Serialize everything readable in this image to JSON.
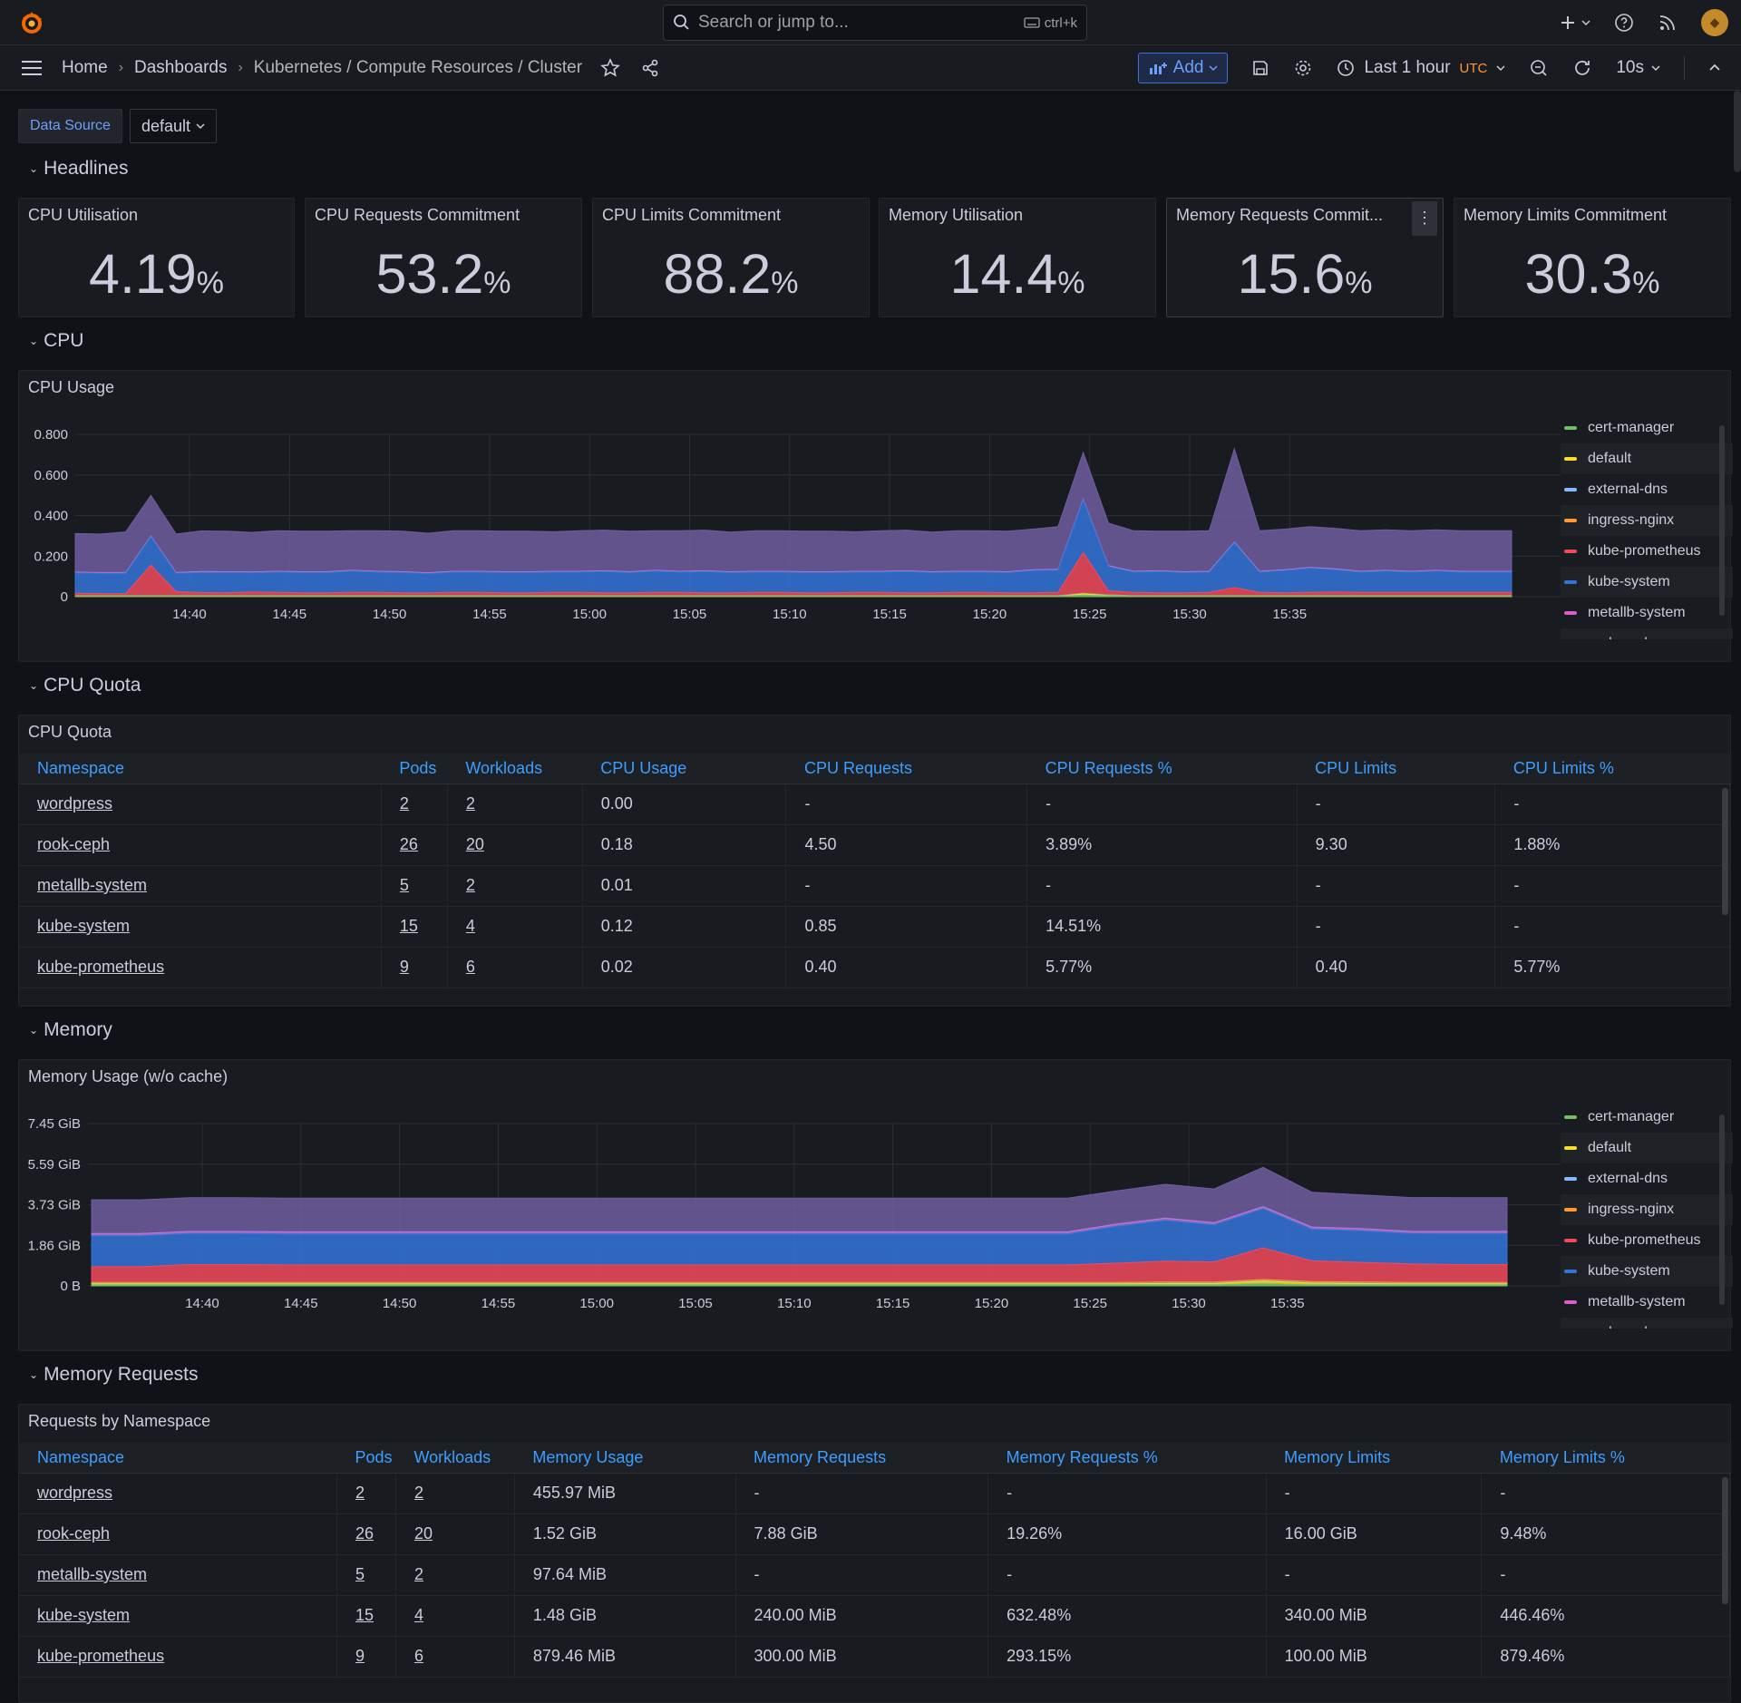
{
  "topbar": {
    "search_placeholder": "Search or jump to...",
    "search_shortcut": "ctrl+k",
    "icons": [
      "grafana-logo-icon",
      "plus-icon",
      "help-icon",
      "rss-icon",
      "avatar"
    ]
  },
  "nav": {
    "breadcrumbs": [
      "Home",
      "Dashboards",
      "Kubernetes / Compute Resources / Cluster"
    ],
    "add_label": "Add",
    "time_range": "Last 1 hour",
    "timezone": "UTC",
    "refresh": "10s"
  },
  "variables": {
    "label": "Data Source",
    "value": "default"
  },
  "rows": {
    "headlines": "Headlines",
    "cpu": "CPU",
    "cpu_quota": "CPU Quota",
    "memory": "Memory",
    "memory_requests": "Memory Requests"
  },
  "stats": [
    {
      "title": "CPU Utilisation",
      "value": "4.19",
      "unit": "%"
    },
    {
      "title": "CPU Requests Commitment",
      "value": "53.2",
      "unit": "%"
    },
    {
      "title": "CPU Limits Commitment",
      "value": "88.2",
      "unit": "%"
    },
    {
      "title": "Memory Utilisation",
      "value": "14.4",
      "unit": "%"
    },
    {
      "title": "Memory Requests Commit...",
      "value": "15.6",
      "unit": "%"
    },
    {
      "title": "Memory Limits Commitment",
      "value": "30.3",
      "unit": "%"
    }
  ],
  "legend": [
    "cert-manager",
    "default",
    "external-dns",
    "ingress-nginx",
    "kube-prometheus",
    "kube-system",
    "metallb-system",
    "rook-ceph"
  ],
  "colors": {
    "cert-manager": "#73bf69",
    "default": "#fade2a",
    "external-dns": "#5794f2",
    "ingress-nginx": "#ff9830",
    "kube-prometheus": "#f2495c",
    "kube-system": "#3274d9",
    "metallb-system": "#b877d9",
    "rook-ceph": "#705da0",
    "legend-external-dns": "#8ab8ff",
    "legend-kube-system": "#3274d9",
    "legend-metallb": "#e05cc7"
  },
  "chart_data": [
    {
      "type": "area",
      "title": "CPU Usage",
      "stacked": true,
      "x": [
        "14:38",
        "14:39",
        "14:40",
        "14:41",
        "14:42",
        "14:43",
        "14:44",
        "14:45",
        "14:46",
        "14:47",
        "14:48",
        "14:49",
        "14:50",
        "14:51",
        "14:52",
        "14:53",
        "14:54",
        "14:55",
        "14:56",
        "14:57",
        "14:58",
        "14:59",
        "15:00",
        "15:01",
        "15:02",
        "15:03",
        "15:04",
        "15:05",
        "15:06",
        "15:07",
        "15:08",
        "15:09",
        "15:10",
        "15:11",
        "15:12",
        "15:13",
        "15:14",
        "15:15",
        "15:16",
        "15:17",
        "15:18",
        "15:19",
        "15:20",
        "15:21",
        "15:22",
        "15:23",
        "15:24",
        "15:25",
        "15:26",
        "15:27",
        "15:28",
        "15:29",
        "15:30",
        "15:31",
        "15:32",
        "15:33",
        "15:34",
        "15:35"
      ],
      "x_ticks": [
        "14:40",
        "14:45",
        "14:50",
        "14:55",
        "15:00",
        "15:05",
        "15:10",
        "15:15",
        "15:20",
        "15:25",
        "15:30",
        "15:35"
      ],
      "y_ticks": [
        "0",
        "0.200",
        "0.400",
        "0.600",
        "0.800"
      ],
      "ylim": [
        0,
        0.8
      ],
      "series": [
        {
          "name": "cert-manager",
          "values": [
            0.002,
            0.002,
            0.002,
            0.002,
            0.002,
            0.002,
            0.002,
            0.002,
            0.002,
            0.002,
            0.002,
            0.002,
            0.002,
            0.002,
            0.002,
            0.002,
            0.002,
            0.002,
            0.002,
            0.002,
            0.002,
            0.002,
            0.002,
            0.002,
            0.002,
            0.002,
            0.002,
            0.002,
            0.002,
            0.002,
            0.002,
            0.002,
            0.002,
            0.002,
            0.002,
            0.002,
            0.002,
            0.002,
            0.002,
            0.002,
            0.008,
            0.004,
            0.002,
            0.002,
            0.002,
            0.002,
            0.002,
            0.002,
            0.002,
            0.002,
            0.002,
            0.002,
            0.002,
            0.002,
            0.002,
            0.002,
            0.002,
            0.002
          ]
        },
        {
          "name": "default",
          "values": [
            0,
            0,
            0,
            0,
            0,
            0,
            0,
            0,
            0,
            0,
            0,
            0,
            0,
            0,
            0,
            0,
            0,
            0,
            0,
            0,
            0,
            0,
            0,
            0,
            0,
            0,
            0,
            0,
            0,
            0,
            0,
            0,
            0,
            0,
            0,
            0,
            0,
            0,
            0,
            0,
            0.006,
            0.002,
            0,
            0,
            0,
            0,
            0,
            0,
            0,
            0,
            0,
            0,
            0,
            0,
            0,
            0,
            0,
            0
          ]
        },
        {
          "name": "external-dns",
          "values": [
            0.001,
            0.001,
            0.001,
            0.001,
            0.001,
            0.001,
            0.001,
            0.001,
            0.001,
            0.001,
            0.001,
            0.001,
            0.001,
            0.001,
            0.001,
            0.001,
            0.001,
            0.001,
            0.001,
            0.001,
            0.001,
            0.001,
            0.001,
            0.001,
            0.001,
            0.001,
            0.001,
            0.001,
            0.001,
            0.001,
            0.001,
            0.001,
            0.001,
            0.001,
            0.001,
            0.001,
            0.001,
            0.001,
            0.001,
            0.001,
            0.001,
            0.001,
            0.001,
            0.001,
            0.001,
            0.001,
            0.001,
            0.001,
            0.001,
            0.001,
            0.001,
            0.001,
            0.001,
            0.001,
            0.001,
            0.001,
            0.001,
            0.001
          ]
        },
        {
          "name": "ingress-nginx",
          "values": [
            0.002,
            0.002,
            0.002,
            0.002,
            0.002,
            0.002,
            0.002,
            0.002,
            0.002,
            0.002,
            0.002,
            0.002,
            0.002,
            0.002,
            0.002,
            0.002,
            0.002,
            0.002,
            0.002,
            0.002,
            0.002,
            0.002,
            0.002,
            0.002,
            0.002,
            0.002,
            0.002,
            0.002,
            0.002,
            0.002,
            0.002,
            0.002,
            0.002,
            0.002,
            0.002,
            0.002,
            0.002,
            0.002,
            0.002,
            0.002,
            0.002,
            0.002,
            0.002,
            0.002,
            0.002,
            0.002,
            0.002,
            0.002,
            0.002,
            0.002,
            0.002,
            0.002,
            0.002,
            0.002,
            0.002,
            0.002,
            0.002,
            0.002
          ]
        },
        {
          "name": "kube-prometheus",
          "values": [
            0.012,
            0.01,
            0.01,
            0.15,
            0.02,
            0.015,
            0.014,
            0.018,
            0.016,
            0.014,
            0.014,
            0.016,
            0.016,
            0.014,
            0.014,
            0.016,
            0.016,
            0.014,
            0.014,
            0.016,
            0.016,
            0.014,
            0.014,
            0.016,
            0.016,
            0.014,
            0.014,
            0.016,
            0.016,
            0.014,
            0.014,
            0.016,
            0.016,
            0.014,
            0.014,
            0.016,
            0.016,
            0.014,
            0.014,
            0.016,
            0.2,
            0.02,
            0.016,
            0.014,
            0.014,
            0.016,
            0.04,
            0.016,
            0.014,
            0.016,
            0.018,
            0.016,
            0.016,
            0.016,
            0.016,
            0.016,
            0.016,
            0.016
          ]
        },
        {
          "name": "kube-system",
          "values": [
            0.1,
            0.1,
            0.1,
            0.14,
            0.09,
            0.1,
            0.1,
            0.095,
            0.1,
            0.1,
            0.1,
            0.105,
            0.1,
            0.1,
            0.095,
            0.1,
            0.1,
            0.1,
            0.1,
            0.1,
            0.1,
            0.105,
            0.1,
            0.105,
            0.1,
            0.105,
            0.1,
            0.1,
            0.1,
            0.1,
            0.1,
            0.1,
            0.1,
            0.105,
            0.1,
            0.1,
            0.1,
            0.1,
            0.11,
            0.11,
            0.26,
            0.12,
            0.1,
            0.105,
            0.1,
            0.1,
            0.22,
            0.1,
            0.11,
            0.12,
            0.11,
            0.1,
            0.105,
            0.1,
            0.105,
            0.1,
            0.1,
            0.1
          ]
        },
        {
          "name": "metallb-system",
          "values": [
            0.004,
            0.004,
            0.004,
            0.004,
            0.004,
            0.004,
            0.004,
            0.004,
            0.004,
            0.004,
            0.004,
            0.004,
            0.004,
            0.004,
            0.004,
            0.004,
            0.004,
            0.004,
            0.004,
            0.004,
            0.004,
            0.004,
            0.004,
            0.004,
            0.004,
            0.004,
            0.004,
            0.004,
            0.004,
            0.004,
            0.004,
            0.004,
            0.004,
            0.004,
            0.004,
            0.004,
            0.004,
            0.004,
            0.004,
            0.004,
            0.004,
            0.004,
            0.004,
            0.004,
            0.004,
            0.004,
            0.004,
            0.004,
            0.004,
            0.004,
            0.004,
            0.004,
            0.004,
            0.004,
            0.004,
            0.004,
            0.004,
            0.004
          ]
        },
        {
          "name": "rook-ceph",
          "values": [
            0.19,
            0.19,
            0.2,
            0.2,
            0.19,
            0.2,
            0.2,
            0.195,
            0.2,
            0.2,
            0.2,
            0.195,
            0.2,
            0.2,
            0.195,
            0.2,
            0.2,
            0.2,
            0.2,
            0.195,
            0.2,
            0.2,
            0.2,
            0.195,
            0.2,
            0.2,
            0.195,
            0.2,
            0.2,
            0.2,
            0.2,
            0.195,
            0.2,
            0.2,
            0.195,
            0.2,
            0.2,
            0.2,
            0.2,
            0.21,
            0.23,
            0.21,
            0.2,
            0.195,
            0.2,
            0.2,
            0.46,
            0.2,
            0.2,
            0.2,
            0.2,
            0.2,
            0.2,
            0.2,
            0.2,
            0.2,
            0.2,
            0.2
          ]
        }
      ]
    },
    {
      "type": "area",
      "title": "Memory Usage (w/o cache)",
      "stacked": true,
      "x_ticks": [
        "14:40",
        "14:45",
        "14:50",
        "14:55",
        "15:00",
        "15:05",
        "15:10",
        "15:15",
        "15:20",
        "15:25",
        "15:30",
        "15:35"
      ],
      "y_ticks": [
        "0 B",
        "1.86 GiB",
        "3.73 GiB",
        "5.59 GiB",
        "7.45 GiB"
      ],
      "ylim_gib": [
        0,
        7.45
      ],
      "series_gib": [
        {
          "name": "cert-manager",
          "values": [
            0.05,
            0.05,
            0.05,
            0.05,
            0.05,
            0.05,
            0.05,
            0.05,
            0.05,
            0.05,
            0.05,
            0.05,
            0.05,
            0.05,
            0.05,
            0.05,
            0.05,
            0.05,
            0.05,
            0.05,
            0.05,
            0.05,
            0.05,
            0.05,
            0.1,
            0.05,
            0.05,
            0.05,
            0.05,
            0.05
          ]
        },
        {
          "name": "default",
          "values": [
            0.04,
            0.04,
            0.04,
            0.04,
            0.04,
            0.04,
            0.04,
            0.04,
            0.04,
            0.04,
            0.04,
            0.04,
            0.04,
            0.04,
            0.04,
            0.04,
            0.04,
            0.04,
            0.04,
            0.04,
            0.04,
            0.04,
            0.06,
            0.06,
            0.12,
            0.08,
            0.06,
            0.04,
            0.04,
            0.04
          ]
        },
        {
          "name": "external-dns",
          "values": [
            0.02,
            0.02,
            0.02,
            0.02,
            0.02,
            0.02,
            0.02,
            0.02,
            0.02,
            0.02,
            0.02,
            0.02,
            0.02,
            0.02,
            0.02,
            0.02,
            0.02,
            0.02,
            0.02,
            0.02,
            0.02,
            0.02,
            0.02,
            0.02,
            0.02,
            0.02,
            0.02,
            0.02,
            0.02,
            0.02
          ]
        },
        {
          "name": "ingress-nginx",
          "values": [
            0.05,
            0.05,
            0.05,
            0.05,
            0.05,
            0.05,
            0.05,
            0.05,
            0.05,
            0.05,
            0.05,
            0.05,
            0.05,
            0.05,
            0.05,
            0.05,
            0.05,
            0.05,
            0.05,
            0.05,
            0.05,
            0.05,
            0.05,
            0.05,
            0.05,
            0.05,
            0.05,
            0.05,
            0.05,
            0.05
          ]
        },
        {
          "name": "kube-prometheus",
          "values": [
            0.72,
            0.72,
            0.82,
            0.82,
            0.8,
            0.8,
            0.8,
            0.8,
            0.8,
            0.8,
            0.8,
            0.8,
            0.8,
            0.8,
            0.8,
            0.8,
            0.8,
            0.8,
            0.8,
            0.8,
            0.8,
            0.88,
            0.95,
            0.92,
            1.45,
            0.95,
            0.9,
            0.85,
            0.82,
            0.82
          ]
        },
        {
          "name": "kube-system",
          "values": [
            1.42,
            1.42,
            1.42,
            1.42,
            1.42,
            1.42,
            1.42,
            1.42,
            1.42,
            1.42,
            1.42,
            1.42,
            1.42,
            1.42,
            1.42,
            1.42,
            1.42,
            1.42,
            1.42,
            1.42,
            1.42,
            1.7,
            1.88,
            1.7,
            1.8,
            1.45,
            1.45,
            1.4,
            1.42,
            1.42
          ]
        },
        {
          "name": "metallb-system",
          "values": [
            0.1,
            0.1,
            0.1,
            0.1,
            0.1,
            0.1,
            0.1,
            0.1,
            0.1,
            0.1,
            0.1,
            0.1,
            0.1,
            0.1,
            0.1,
            0.1,
            0.1,
            0.1,
            0.1,
            0.1,
            0.1,
            0.1,
            0.1,
            0.1,
            0.1,
            0.1,
            0.1,
            0.1,
            0.1,
            0.1
          ]
        },
        {
          "name": "rook-ceph",
          "values": [
            1.55,
            1.55,
            1.55,
            1.55,
            1.55,
            1.55,
            1.55,
            1.55,
            1.55,
            1.55,
            1.55,
            1.55,
            1.55,
            1.55,
            1.55,
            1.55,
            1.55,
            1.55,
            1.55,
            1.55,
            1.55,
            1.52,
            1.55,
            1.55,
            1.8,
            1.6,
            1.55,
            1.55,
            1.55,
            1.55
          ]
        }
      ]
    }
  ],
  "cpu_quota": {
    "title": "CPU Quota",
    "columns": [
      "Namespace",
      "Pods",
      "Workloads",
      "CPU Usage",
      "CPU Requests",
      "CPU Requests %",
      "CPU Limits",
      "CPU Limits %"
    ],
    "rows": [
      [
        "wordpress",
        "2",
        "2",
        "0.00",
        "-",
        "-",
        "-",
        "-"
      ],
      [
        "rook-ceph",
        "26",
        "20",
        "0.18",
        "4.50",
        "3.89%",
        "9.30",
        "1.88%"
      ],
      [
        "metallb-system",
        "5",
        "2",
        "0.01",
        "-",
        "-",
        "-",
        "-"
      ],
      [
        "kube-system",
        "15",
        "4",
        "0.12",
        "0.85",
        "14.51%",
        "-",
        "-"
      ],
      [
        "kube-prometheus",
        "9",
        "6",
        "0.02",
        "0.40",
        "5.77%",
        "0.40",
        "5.77%"
      ]
    ]
  },
  "mem_requests": {
    "title": "Requests by Namespace",
    "columns": [
      "Namespace",
      "Pods",
      "Workloads",
      "Memory Usage",
      "Memory Requests",
      "Memory Requests %",
      "Memory Limits",
      "Memory Limits %"
    ],
    "rows": [
      [
        "wordpress",
        "2",
        "2",
        "455.97 MiB",
        "-",
        "-",
        "-",
        "-"
      ],
      [
        "rook-ceph",
        "26",
        "20",
        "1.52 GiB",
        "7.88 GiB",
        "19.26%",
        "16.00 GiB",
        "9.48%"
      ],
      [
        "metallb-system",
        "5",
        "2",
        "97.64 MiB",
        "-",
        "-",
        "-",
        "-"
      ],
      [
        "kube-system",
        "15",
        "4",
        "1.48 GiB",
        "240.00 MiB",
        "632.48%",
        "340.00 MiB",
        "446.46%"
      ],
      [
        "kube-prometheus",
        "9",
        "6",
        "879.46 MiB",
        "300.00 MiB",
        "293.15%",
        "100.00 MiB",
        "879.46%"
      ]
    ]
  }
}
